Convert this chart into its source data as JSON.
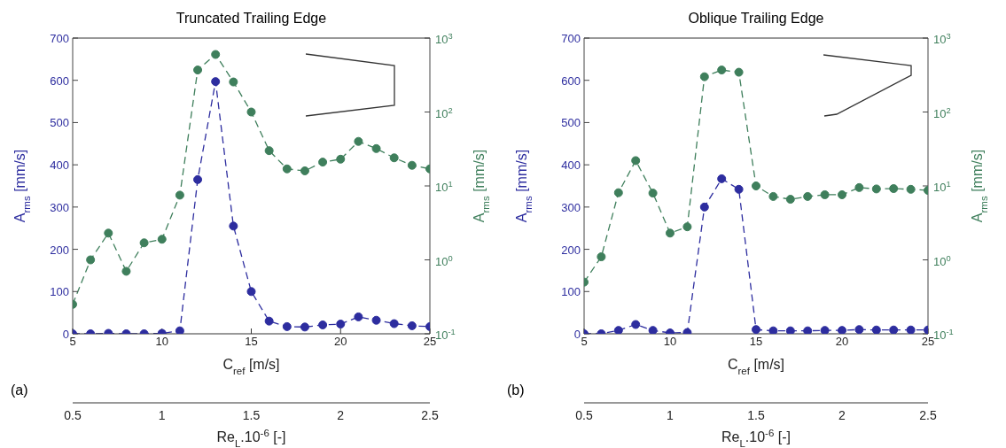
{
  "chart_data": [
    {
      "type": "line",
      "title": "Truncated Trailing Edge",
      "xlabel": "C$_{ref}$ [m/s]",
      "ylabel": "A$_{rms}$ [mm/s]",
      "y2label": "A$_{rms}$ [mm/s]",
      "x2label": "Re$_{L}$.10$^{-6}$ [-]",
      "annotations": [
        "(a)"
      ],
      "x": [
        5,
        6,
        7,
        8,
        9,
        10,
        11,
        12,
        13,
        14,
        15,
        16,
        17,
        18,
        19,
        20,
        21,
        22,
        23,
        24,
        25
      ],
      "xlim": [
        5,
        25
      ],
      "xticks": [
        5,
        10,
        15,
        20,
        25
      ],
      "x2lim": [
        0.5,
        2.5
      ],
      "x2ticks": [
        0.5,
        1,
        1.5,
        2,
        2.5
      ],
      "ylim": [
        0,
        700
      ],
      "yticks": [
        0,
        100,
        200,
        300,
        400,
        500,
        600,
        700
      ],
      "y2lim": [
        0.1,
        1000
      ],
      "y2ticks": [
        {
          "value": 0.1,
          "label": "10$^{-1}$"
        },
        {
          "value": 1,
          "label": "10$^{0}$"
        },
        {
          "value": 10,
          "label": "10$^{1}$"
        },
        {
          "value": 100,
          "label": "10$^{2}$"
        },
        {
          "value": 1000,
          "label": "10$^{3}$"
        }
      ],
      "log": "y2",
      "marker": "circle",
      "line_style": "dashed",
      "series": [
        {
          "color": "#2d2d9f",
          "values": [
            0,
            0,
            1,
            0,
            0,
            1,
            7,
            365,
            597,
            255,
            100,
            30,
            17,
            16,
            21,
            23,
            40,
            32,
            24,
            19,
            17
          ]
        },
        {
          "color": "#3f7f5c",
          "axis": "y2",
          "values": [
            0.25,
            1.0,
            2.3,
            0.7,
            1.7,
            1.9,
            7.5,
            370,
            600,
            255,
            100,
            30,
            17,
            16,
            21,
            23,
            40,
            32,
            24,
            19,
            17
          ]
        }
      ]
    },
    {
      "type": "line",
      "title": "Oblique Trailing Edge",
      "xlabel": "C$_{ref}$ [m/s]",
      "ylabel": "A$_{rms}$ [mm/s]",
      "y2label": "A$_{rms}$ [mm/s]",
      "x2label": "Re$_{L}$.10$^{-6}$ [-]",
      "annotations": [
        "(b)"
      ],
      "x": [
        5,
        6,
        7,
        8,
        9,
        10,
        11,
        12,
        13,
        14,
        15,
        16,
        17,
        18,
        19,
        20,
        21,
        22,
        23,
        24,
        25
      ],
      "xlim": [
        5,
        25
      ],
      "xticks": [
        5,
        10,
        15,
        20,
        25
      ],
      "x2lim": [
        0.5,
        2.5
      ],
      "x2ticks": [
        0.5,
        1,
        1.5,
        2,
        2.5
      ],
      "ylim": [
        0,
        700
      ],
      "yticks": [
        0,
        100,
        200,
        300,
        400,
        500,
        600,
        700
      ],
      "y2lim": [
        0.1,
        1000
      ],
      "y2ticks": [
        {
          "value": 0.1,
          "label": "10$^{-1}$"
        },
        {
          "value": 1,
          "label": "10$^{0}$"
        },
        {
          "value": 10,
          "label": "10$^{1}$"
        },
        {
          "value": 100,
          "label": "10$^{2}$"
        },
        {
          "value": 1000,
          "label": "10$^{3}$"
        }
      ],
      "log": "y2",
      "marker": "circle",
      "line_style": "dashed",
      "series": [
        {
          "color": "#2d2d9f",
          "values": [
            0,
            0,
            8,
            22,
            8,
            2,
            3,
            300,
            367,
            342,
            10,
            7,
            7,
            7,
            8,
            8,
            10,
            9,
            9,
            9,
            9
          ]
        },
        {
          "color": "#3f7f5c",
          "axis": "y2",
          "values": [
            0.5,
            1.1,
            8.1,
            22,
            8,
            2.3,
            2.8,
            300,
            370,
            345,
            10,
            7.2,
            6.6,
            7.2,
            7.6,
            7.6,
            9.5,
            9.1,
            9.2,
            9.0,
            8.7
          ]
        }
      ]
    }
  ]
}
